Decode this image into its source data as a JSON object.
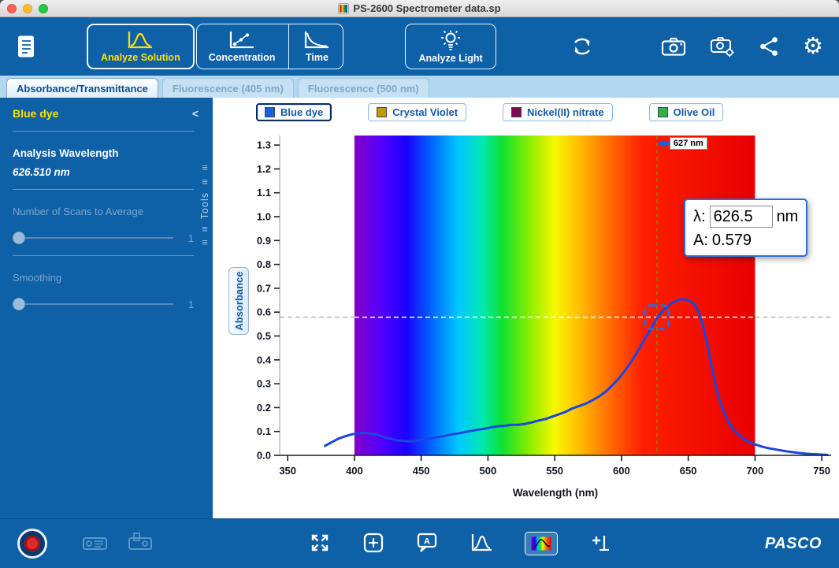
{
  "window": {
    "title": "PS-2600 Spectrometer data.sp"
  },
  "icons": {
    "collapse": "<",
    "drag_handle": "≡",
    "gear": "⚙"
  },
  "toolbar": {
    "analyze_solution": "Analyze Solution",
    "concentration": "Concentration",
    "time": "Time",
    "analyze_light": "Analyze Light",
    "active_mode": "Analyze Solution"
  },
  "tabs": [
    {
      "label": "Absorbance/Transmittance",
      "active": true
    },
    {
      "label": "Fluorescence (405 nm)",
      "active": false
    },
    {
      "label": "Fluorescence (500 nm)",
      "active": false
    }
  ],
  "sidebar": {
    "title": "Blue dye",
    "analysis_wavelength_label": "Analysis Wavelength",
    "analysis_wavelength_value": "626.510 nm",
    "tools_label": "Tools",
    "scans_label": "Number of Scans to Average",
    "scans_value": "1",
    "smoothing_label": "Smoothing",
    "smoothing_value": "1"
  },
  "legend": {
    "items": [
      {
        "label": "Blue dye",
        "color": "#1d5ce4",
        "selected": true
      },
      {
        "label": "Crystal Violet",
        "color": "#c09a08",
        "selected": false
      },
      {
        "label": "Nickel(II) nitrate",
        "color": "#7b0d55",
        "selected": false
      },
      {
        "label": "Olive Oil",
        "color": "#2fb24c",
        "selected": false
      }
    ]
  },
  "chart_data": {
    "type": "line",
    "title": "",
    "xlabel": "Wavelength (nm)",
    "ylabel": "Absorbance",
    "xlim": [
      344,
      757
    ],
    "ylim": [
      0,
      1.34
    ],
    "xticks": [
      350,
      400,
      450,
      500,
      550,
      600,
      650,
      700,
      750
    ],
    "yticks": [
      0,
      0.1,
      0.2,
      0.3,
      0.4,
      0.5,
      0.6,
      0.7,
      0.8,
      0.9,
      1.0,
      1.1,
      1.2,
      1.3
    ],
    "grid": false,
    "legend_position": "top",
    "spectrum_band": [
      400,
      700
    ],
    "series": [
      {
        "name": "Blue dye",
        "color": "#1b46df",
        "points": [
          [
            378,
            0.04
          ],
          [
            383,
            0.055
          ],
          [
            388,
            0.07
          ],
          [
            393,
            0.08
          ],
          [
            398,
            0.088
          ],
          [
            403,
            0.092
          ],
          [
            408,
            0.094
          ],
          [
            413,
            0.09
          ],
          [
            418,
            0.085
          ],
          [
            423,
            0.075
          ],
          [
            428,
            0.068
          ],
          [
            433,
            0.062
          ],
          [
            438,
            0.06
          ],
          [
            443,
            0.058
          ],
          [
            448,
            0.062
          ],
          [
            453,
            0.066
          ],
          [
            458,
            0.072
          ],
          [
            463,
            0.078
          ],
          [
            468,
            0.082
          ],
          [
            473,
            0.088
          ],
          [
            478,
            0.092
          ],
          [
            483,
            0.098
          ],
          [
            488,
            0.103
          ],
          [
            493,
            0.108
          ],
          [
            498,
            0.112
          ],
          [
            503,
            0.118
          ],
          [
            508,
            0.122
          ],
          [
            513,
            0.124
          ],
          [
            518,
            0.128
          ],
          [
            523,
            0.128
          ],
          [
            528,
            0.132
          ],
          [
            533,
            0.138
          ],
          [
            538,
            0.146
          ],
          [
            543,
            0.152
          ],
          [
            548,
            0.162
          ],
          [
            553,
            0.172
          ],
          [
            558,
            0.182
          ],
          [
            563,
            0.196
          ],
          [
            568,
            0.206
          ],
          [
            573,
            0.216
          ],
          [
            578,
            0.23
          ],
          [
            583,
            0.246
          ],
          [
            588,
            0.266
          ],
          [
            593,
            0.292
          ],
          [
            598,
            0.322
          ],
          [
            603,
            0.358
          ],
          [
            608,
            0.398
          ],
          [
            613,
            0.444
          ],
          [
            618,
            0.492
          ],
          [
            623,
            0.54
          ],
          [
            627,
            0.579
          ],
          [
            631,
            0.606
          ],
          [
            635,
            0.626
          ],
          [
            639,
            0.642
          ],
          [
            643,
            0.652
          ],
          [
            647,
            0.655
          ],
          [
            651,
            0.648
          ],
          [
            655,
            0.63
          ],
          [
            658,
            0.598
          ],
          [
            661,
            0.545
          ],
          [
            664,
            0.47
          ],
          [
            667,
            0.385
          ],
          [
            670,
            0.305
          ],
          [
            673,
            0.24
          ],
          [
            676,
            0.19
          ],
          [
            680,
            0.14
          ],
          [
            684,
            0.108
          ],
          [
            688,
            0.085
          ],
          [
            692,
            0.068
          ],
          [
            696,
            0.055
          ],
          [
            700,
            0.046
          ],
          [
            705,
            0.037
          ],
          [
            710,
            0.03
          ],
          [
            716,
            0.024
          ],
          [
            722,
            0.018
          ],
          [
            730,
            0.012
          ],
          [
            738,
            0.007
          ],
          [
            746,
            0.004
          ],
          [
            754,
            0.002
          ]
        ]
      }
    ],
    "cursor": {
      "x": 626.51,
      "y": 0.579,
      "marker_label": "627 nm",
      "lambda_prefix": "λ:",
      "lambda_value": "626.5",
      "lambda_unit": "nm",
      "a_prefix": "A:",
      "a_value": "0.579"
    }
  },
  "bottombar": {
    "brand": "PASCO"
  }
}
